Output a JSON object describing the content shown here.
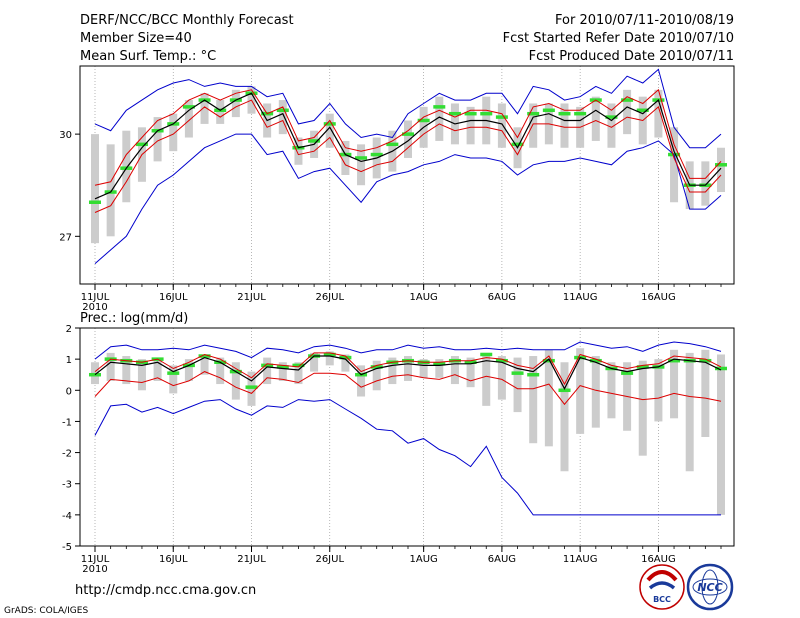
{
  "header": {
    "title": "DERF/NCC/BCC Monthly Forecast",
    "member_size": "Member Size=40",
    "variable": "Mean Surf. Temp.: °C",
    "period": "For 2010/07/11-2010/08/19",
    "refer_date": "Fcst Started Refer Date 2010/07/10",
    "produced_date": "Fcst Produced Date 2010/07/11"
  },
  "footer": {
    "url": "http://cmdp.ncc.cma.gov.cn",
    "grads_credit": "GrADS: COLA/IGES",
    "logo_bcc_text": "BCC",
    "logo_ncc_text": "NCC"
  },
  "colors": {
    "ens_max_min": "#0000cc",
    "spread": "#dd0000",
    "mean": "#000000",
    "median": "#33dd33",
    "box": "#cccccc"
  },
  "chart_data": [
    {
      "type": "line",
      "title": "Mean Surf. Temp.: °C",
      "x_tick_labels": [
        "11JUL",
        "16JUL",
        "21JUL",
        "26JUL",
        "1AUG",
        "6AUG",
        "11AUG",
        "16AUG"
      ],
      "x_tick_days": [
        1,
        6,
        11,
        16,
        22,
        27,
        32,
        37
      ],
      "year_label": "2010",
      "ylim": [
        25.6,
        32.0
      ],
      "y_ticks": [
        27,
        30
      ],
      "series": [
        {
          "name": "ensemble max",
          "values": [
            30.3,
            30.1,
            30.7,
            31.0,
            31.3,
            31.5,
            31.6,
            31.4,
            31.5,
            31.4,
            31.4,
            31.1,
            31.2,
            30.3,
            30.4,
            30.9,
            30.3,
            29.9,
            30.0,
            29.9,
            30.6,
            30.9,
            31.2,
            31.0,
            31.0,
            31.2,
            31.2,
            30.6,
            31.4,
            31.3,
            31.0,
            31.1,
            31.4,
            31.2,
            31.7,
            31.5,
            31.9,
            30.2,
            29.6,
            29.6,
            30.0
          ]
        },
        {
          "name": "spread upper",
          "values": [
            28.5,
            28.6,
            29.4,
            29.9,
            30.4,
            30.6,
            31.0,
            31.2,
            31.0,
            31.2,
            31.3,
            30.6,
            30.8,
            29.8,
            29.9,
            30.4,
            29.6,
            29.5,
            29.6,
            29.8,
            30.1,
            30.5,
            30.7,
            30.5,
            30.7,
            30.7,
            30.6,
            29.9,
            30.8,
            30.9,
            30.7,
            30.7,
            31.0,
            30.7,
            31.1,
            30.9,
            31.3,
            29.7,
            28.7,
            28.7,
            29.2
          ]
        },
        {
          "name": "spread lower",
          "values": [
            27.7,
            27.9,
            28.6,
            29.4,
            29.8,
            30.0,
            30.4,
            30.8,
            30.5,
            30.8,
            31.0,
            30.2,
            30.4,
            29.4,
            29.5,
            29.9,
            29.1,
            28.9,
            29.1,
            29.2,
            29.6,
            30.0,
            30.3,
            30.1,
            30.2,
            30.2,
            30.1,
            29.4,
            30.3,
            30.3,
            30.2,
            30.2,
            30.4,
            30.2,
            30.5,
            30.4,
            30.8,
            29.3,
            28.3,
            28.3,
            28.8
          ]
        },
        {
          "name": "ensemble mean",
          "values": [
            28.1,
            28.3,
            29.0,
            29.6,
            30.1,
            30.3,
            30.7,
            31.0,
            30.7,
            31.0,
            31.2,
            30.4,
            30.6,
            29.6,
            29.7,
            30.2,
            29.4,
            29.2,
            29.3,
            29.5,
            29.8,
            30.2,
            30.5,
            30.3,
            30.4,
            30.4,
            30.3,
            29.6,
            30.5,
            30.6,
            30.4,
            30.4,
            30.7,
            30.4,
            30.8,
            30.6,
            31.0,
            29.5,
            28.5,
            28.5,
            29.0
          ]
        },
        {
          "name": "ensemble median",
          "values": [
            28.0,
            28.3,
            29.0,
            29.7,
            30.1,
            30.3,
            30.8,
            31.0,
            30.7,
            31.0,
            31.2,
            30.6,
            30.7,
            29.6,
            29.8,
            30.3,
            29.4,
            29.3,
            29.4,
            29.7,
            30.0,
            30.4,
            30.8,
            30.6,
            30.6,
            30.6,
            30.5,
            29.7,
            30.6,
            30.7,
            30.6,
            30.6,
            31.0,
            30.5,
            31.0,
            30.7,
            31.0,
            29.4,
            28.5,
            28.5,
            29.1
          ]
        },
        {
          "name": "ensemble min",
          "values": [
            26.2,
            26.6,
            27.0,
            27.8,
            28.5,
            28.8,
            29.2,
            29.6,
            29.8,
            30.0,
            30.0,
            29.4,
            29.5,
            28.7,
            28.9,
            29.0,
            28.5,
            28.0,
            28.6,
            28.8,
            28.9,
            29.1,
            29.2,
            29.4,
            29.3,
            29.3,
            29.2,
            28.8,
            29.1,
            29.2,
            29.2,
            29.3,
            29.2,
            29.1,
            29.5,
            29.6,
            29.8,
            29.4,
            27.8,
            27.8,
            28.2
          ]
        },
        {
          "name": "box upper",
          "values": [
            30.0,
            29.7,
            30.1,
            30.2,
            30.5,
            30.6,
            31.0,
            31.2,
            31.0,
            31.3,
            31.4,
            30.9,
            31.0,
            29.9,
            30.1,
            30.6,
            29.8,
            29.7,
            29.9,
            30.1,
            30.4,
            30.8,
            31.1,
            30.9,
            30.8,
            31.1,
            30.9,
            30.2,
            30.9,
            30.9,
            30.9,
            30.8,
            31.1,
            30.9,
            31.3,
            31.1,
            31.3,
            30.2,
            29.2,
            29.2,
            29.6
          ]
        },
        {
          "name": "box lower",
          "values": [
            26.8,
            27.0,
            28.0,
            28.6,
            29.2,
            29.5,
            29.9,
            30.3,
            30.3,
            30.5,
            30.6,
            29.9,
            30.0,
            29.1,
            29.3,
            29.6,
            28.8,
            28.5,
            28.7,
            28.9,
            29.3,
            29.6,
            29.8,
            29.7,
            29.7,
            29.7,
            29.6,
            29.0,
            29.6,
            29.7,
            29.6,
            29.6,
            29.8,
            29.6,
            30.0,
            29.7,
            29.9,
            28.0,
            27.8,
            27.9,
            28.3
          ]
        }
      ]
    },
    {
      "type": "line",
      "title": "Prec.: log(mm/d)",
      "x_tick_labels": [
        "11JUL",
        "16JUL",
        "21JUL",
        "26JUL",
        "1AUG",
        "6AUG",
        "11AUG",
        "16AUG"
      ],
      "x_tick_days": [
        1,
        6,
        11,
        16,
        22,
        27,
        32,
        37
      ],
      "year_label": "2010",
      "ylim": [
        -5,
        2
      ],
      "y_ticks": [
        -5,
        -4,
        -3,
        -2,
        -1,
        0,
        1,
        2
      ],
      "series": [
        {
          "name": "ensemble max",
          "values": [
            1.0,
            1.4,
            1.45,
            1.3,
            1.3,
            1.35,
            1.3,
            1.45,
            1.35,
            1.25,
            1.05,
            1.35,
            1.3,
            1.2,
            1.4,
            1.45,
            1.35,
            1.2,
            1.3,
            1.3,
            1.45,
            1.35,
            1.4,
            1.3,
            1.3,
            1.35,
            1.3,
            1.35,
            1.3,
            1.3,
            1.3,
            1.55,
            1.45,
            1.35,
            1.4,
            1.25,
            1.45,
            1.55,
            1.5,
            1.4,
            1.25
          ]
        },
        {
          "name": "spread upper",
          "values": [
            0.6,
            1.0,
            0.95,
            0.9,
            1.0,
            0.7,
            0.9,
            1.15,
            1.0,
            0.7,
            0.4,
            0.85,
            0.8,
            0.75,
            1.2,
            1.2,
            1.1,
            0.6,
            0.8,
            0.9,
            0.95,
            0.9,
            0.9,
            0.95,
            0.95,
            1.05,
            1.0,
            0.8,
            0.7,
            1.1,
            0.2,
            1.15,
            1.0,
            0.8,
            0.7,
            0.8,
            0.85,
            1.1,
            1.05,
            1.0,
            0.75
          ]
        },
        {
          "name": "ensemble mean",
          "values": [
            0.5,
            0.9,
            0.85,
            0.8,
            0.9,
            0.6,
            0.8,
            1.05,
            0.9,
            0.6,
            0.3,
            0.75,
            0.7,
            0.65,
            1.1,
            1.1,
            1.0,
            0.5,
            0.7,
            0.8,
            0.85,
            0.8,
            0.8,
            0.85,
            0.85,
            0.95,
            0.9,
            0.7,
            0.6,
            1.0,
            0.05,
            1.05,
            0.9,
            0.7,
            0.6,
            0.7,
            0.75,
            1.0,
            0.95,
            0.9,
            0.65
          ]
        },
        {
          "name": "ensemble median",
          "values": [
            0.5,
            1.0,
            0.95,
            0.9,
            1.0,
            0.55,
            0.8,
            1.1,
            0.9,
            0.6,
            0.1,
            0.8,
            0.75,
            0.8,
            1.1,
            1.15,
            1.05,
            0.5,
            0.75,
            0.9,
            0.95,
            0.9,
            0.85,
            0.95,
            0.9,
            1.15,
            0.95,
            0.55,
            0.5,
            0.95,
            0.0,
            1.05,
            0.95,
            0.7,
            0.55,
            0.75,
            0.75,
            0.95,
            0.95,
            0.95,
            0.7
          ]
        },
        {
          "name": "spread lower",
          "values": [
            -0.2,
            0.35,
            0.3,
            0.25,
            0.4,
            0.15,
            0.3,
            0.6,
            0.4,
            0.1,
            -0.1,
            0.4,
            0.35,
            0.25,
            0.55,
            0.55,
            0.5,
            0.1,
            0.3,
            0.45,
            0.5,
            0.4,
            0.35,
            0.5,
            0.3,
            0.45,
            0.35,
            0.05,
            0.05,
            0.2,
            -0.45,
            0.15,
            0.0,
            -0.1,
            -0.2,
            -0.3,
            -0.25,
            -0.1,
            -0.2,
            -0.25,
            -0.35
          ]
        },
        {
          "name": "ensemble min",
          "values": [
            -1.45,
            -0.5,
            -0.45,
            -0.7,
            -0.55,
            -0.75,
            -0.55,
            -0.35,
            -0.3,
            -0.6,
            -0.8,
            -0.5,
            -0.55,
            -0.3,
            -0.35,
            -0.3,
            -0.6,
            -0.9,
            -1.25,
            -1.3,
            -1.7,
            -1.55,
            -1.9,
            -2.1,
            -2.45,
            -1.8,
            -2.8,
            -3.3,
            -4.0,
            -4.0,
            -4.0,
            -4.0,
            -4.0,
            -4.0,
            -4.0,
            -4.0,
            -4.0,
            -4.0,
            -4.0,
            -4.0,
            -4.0
          ]
        },
        {
          "name": "box upper",
          "values": [
            0.9,
            1.2,
            1.1,
            1.0,
            1.0,
            0.8,
            1.0,
            1.15,
            1.05,
            0.9,
            0.6,
            1.05,
            0.9,
            0.9,
            1.2,
            1.25,
            1.15,
            0.8,
            0.95,
            1.05,
            1.1,
            1.0,
            1.0,
            1.1,
            1.05,
            1.2,
            1.1,
            1.05,
            1.1,
            1.3,
            0.9,
            1.35,
            1.1,
            0.9,
            0.9,
            0.95,
            1.0,
            1.3,
            1.2,
            1.3,
            1.15
          ]
        },
        {
          "name": "box lower",
          "values": [
            0.2,
            0.3,
            0.2,
            0.0,
            0.3,
            -0.1,
            0.3,
            0.5,
            0.2,
            -0.3,
            -0.5,
            0.2,
            0.3,
            0.2,
            0.6,
            0.8,
            0.6,
            -0.2,
            0.0,
            0.2,
            0.3,
            0.4,
            0.4,
            0.2,
            0.1,
            -0.5,
            -0.3,
            -0.7,
            -1.7,
            -1.8,
            -2.6,
            -1.4,
            -1.2,
            -0.9,
            -1.3,
            -2.1,
            -1.0,
            -0.9,
            -2.6,
            -1.5,
            -4.0
          ]
        }
      ]
    }
  ]
}
